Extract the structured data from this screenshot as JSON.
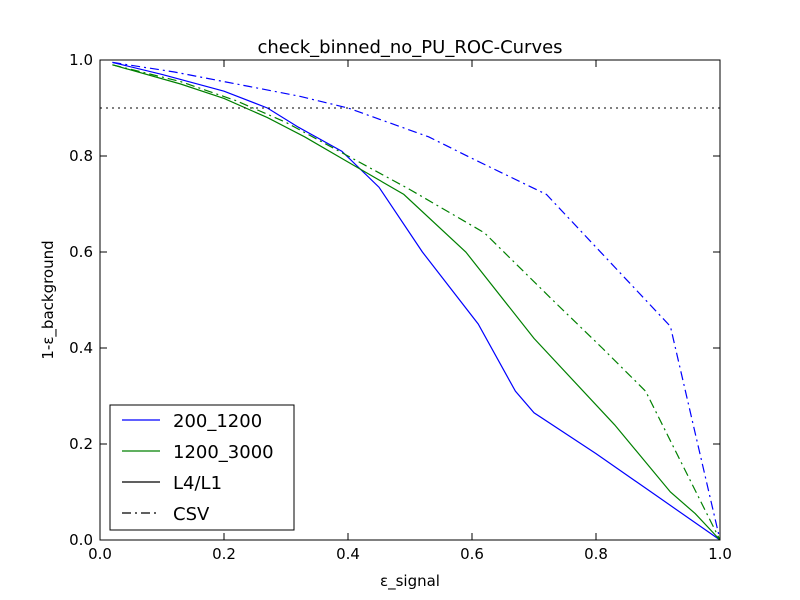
{
  "chart_data": {
    "type": "line",
    "title": "check_binned_no_PU_ROC-Curves",
    "xlabel": "ε_signal",
    "ylabel": "1-ε_background",
    "xlim": [
      0.0,
      1.0
    ],
    "ylim": [
      0.0,
      1.0
    ],
    "xticks": [
      "0.0",
      "0.2",
      "0.4",
      "0.6",
      "0.8",
      "1.0"
    ],
    "yticks": [
      "0.0",
      "0.2",
      "0.4",
      "0.6",
      "0.8",
      "1.0"
    ],
    "grid": false,
    "legend_position": "lower-left",
    "reference_line": {
      "y": 0.9,
      "style": "dotted",
      "color": "#000000"
    },
    "legend": [
      {
        "label": "200_1200",
        "color": "#0000ff",
        "style": "solid"
      },
      {
        "label": "1200_3000",
        "color": "#008000",
        "style": "solid"
      },
      {
        "label": "L4/L1",
        "color": "#000000",
        "style": "solid"
      },
      {
        "label": "CSV",
        "color": "#000000",
        "style": "dashdot"
      }
    ],
    "series": [
      {
        "name": "200_1200",
        "group": "L4/L1",
        "color": "#0000ff",
        "style": "solid",
        "x": [
          0.02,
          0.1,
          0.2,
          0.27,
          0.32,
          0.39,
          0.45,
          0.52,
          0.61,
          0.67,
          0.7,
          0.8,
          0.9,
          1.0
        ],
        "y": [
          0.995,
          0.97,
          0.935,
          0.9,
          0.86,
          0.81,
          0.735,
          0.6,
          0.45,
          0.31,
          0.265,
          0.18,
          0.09,
          0.0
        ]
      },
      {
        "name": "1200_3000",
        "group": "L4/L1",
        "color": "#008000",
        "style": "solid",
        "x": [
          0.02,
          0.13,
          0.2,
          0.27,
          0.33,
          0.41,
          0.49,
          0.59,
          0.7,
          0.83,
          0.92,
          0.96,
          1.0
        ],
        "y": [
          0.99,
          0.95,
          0.92,
          0.88,
          0.84,
          0.78,
          0.72,
          0.6,
          0.42,
          0.24,
          0.1,
          0.055,
          0.0
        ]
      },
      {
        "name": "200_1200",
        "group": "CSV",
        "color": "#0000ff",
        "style": "dashdot",
        "x": [
          0.02,
          0.12,
          0.24,
          0.32,
          0.4,
          0.53,
          0.6,
          0.72,
          0.8,
          0.92,
          1.0
        ],
        "y": [
          0.995,
          0.975,
          0.945,
          0.925,
          0.9,
          0.84,
          0.795,
          0.72,
          0.61,
          0.445,
          0.0
        ]
      },
      {
        "name": "1200_3000",
        "group": "CSV",
        "color": "#008000",
        "style": "dashdot",
        "x": [
          0.02,
          0.13,
          0.22,
          0.3,
          0.4,
          0.5,
          0.62,
          0.73,
          0.81,
          0.88,
          1.0
        ],
        "y": [
          0.99,
          0.955,
          0.915,
          0.87,
          0.8,
          0.73,
          0.64,
          0.5,
          0.4,
          0.31,
          0.0
        ]
      }
    ]
  }
}
